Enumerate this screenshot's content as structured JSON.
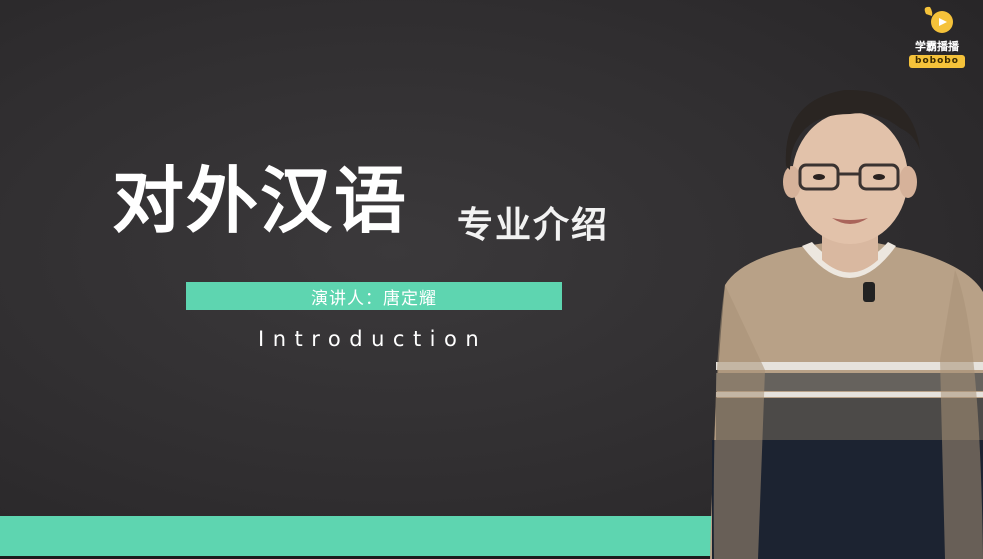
{
  "slide": {
    "title_main": "对外汉语",
    "title_sub": "专业介绍",
    "speaker_line": "演讲人：唐定耀",
    "intro": "Introduction"
  },
  "logo": {
    "name": "学霸播播",
    "sub": "bobobo"
  },
  "colors": {
    "background": "#302e30",
    "accent": "#5ed5b0",
    "logo_yellow": "#f5c23a",
    "text": "#ffffff"
  }
}
